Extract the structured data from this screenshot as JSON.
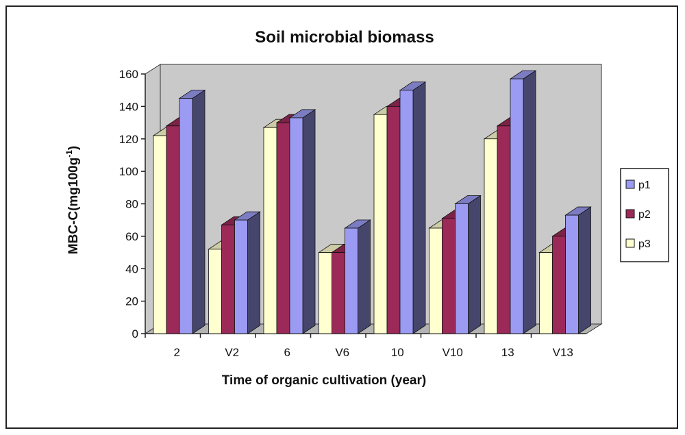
{
  "chart_data": {
    "type": "bar",
    "title": "Soil microbial biomass",
    "xlabel": "Time of organic cultivation (year)",
    "ylabel": "MBC-C(mg100g",
    "ylabel_sup": "-1",
    "ylabel_close": ")",
    "categories": [
      "2",
      "V2",
      "6",
      "V6",
      "10",
      "V10",
      "13",
      "V13"
    ],
    "ylim": [
      0,
      160
    ],
    "yticks": [
      "0",
      "20",
      "40",
      "60",
      "80",
      "100",
      "120",
      "140",
      "160"
    ],
    "series": [
      {
        "name": "p3",
        "values": [
          122,
          52,
          127,
          50,
          135,
          65,
          120,
          50
        ]
      },
      {
        "name": "p2",
        "values": [
          128,
          67,
          130,
          50,
          140,
          71,
          128,
          60
        ]
      },
      {
        "name": "p1",
        "values": [
          145,
          70,
          133,
          65,
          150,
          80,
          157,
          73
        ]
      }
    ],
    "legend": [
      {
        "name": "p1"
      },
      {
        "name": "p2"
      },
      {
        "name": "p3"
      }
    ],
    "legend_position": "right",
    "grid": false,
    "view": "3d-clustered-column",
    "colors": {
      "p1": "#9b9bf3",
      "p2": "#9b2a58",
      "p3": "#ffffcf",
      "wall": "#c9c9c9",
      "floor": "#b3b3b3"
    }
  }
}
